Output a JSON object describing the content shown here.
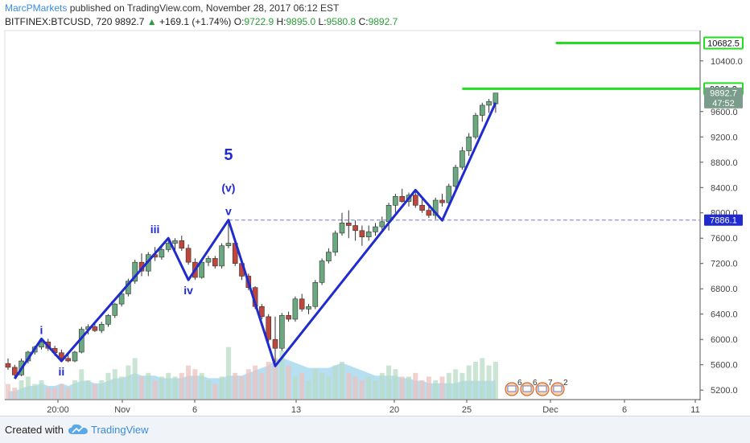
{
  "header": {
    "author": "MarcPMarkets",
    "published_text": "published on TradingView.com, November 28, 2017 06:12 EST",
    "symbol": "BITFINEX:BTCUSD, 720",
    "last": "9892.7",
    "change": "+169.1 (+1.74%)",
    "o_label": "O:",
    "o_value": "9722.9",
    "h_label": "H:",
    "h_value": "9895.0",
    "l_label": "L:",
    "l_value": "9580.8",
    "c_label": "C:",
    "c_value": "9892.7",
    "up_icon": "triangle-up-icon"
  },
  "footer": {
    "created_with": "Created with",
    "brand": "TradingView",
    "logo_icon": "tradingview-cloud-icon"
  },
  "colors": {
    "up_candle": "#6aa880",
    "down_candle": "#c0453a",
    "wave_line": "#1f2bcf",
    "target_line": "#22dd22",
    "dashed_level": "#9a9ae0",
    "volume_area": "#9fd4ee"
  },
  "chart_data": {
    "type": "candlestick",
    "ylim": [
      5050,
      10880
    ],
    "x_ticks": [
      "20:00",
      "Nov",
      "6",
      "13",
      "20",
      "25",
      "Dec",
      "6",
      "11"
    ],
    "y_ticks": [
      "5200.0",
      "5600.0",
      "6000.0",
      "6400.0",
      "6800.0",
      "7200.0",
      "7600.0",
      "8000.0",
      "8400.0",
      "8800.0",
      "9200.0",
      "9600.0",
      "10400.0"
    ],
    "price_labels": [
      {
        "text": "10682.5",
        "value": 10682.5,
        "style": "green"
      },
      {
        "text": "9961.2",
        "value": 9961.2,
        "style": "green"
      },
      {
        "text": "9892.7",
        "value": 9892.7,
        "style": "gray"
      },
      {
        "text": "47:52",
        "value": 9740,
        "style": "gray"
      },
      {
        "text": "7886.1",
        "value": 7886.1,
        "style": "blue"
      }
    ],
    "candles": [
      {
        "o": 5620,
        "h": 5700,
        "l": 5520,
        "c": 5560
      },
      {
        "o": 5560,
        "h": 5600,
        "l": 5380,
        "c": 5440
      },
      {
        "o": 5440,
        "h": 5700,
        "l": 5420,
        "c": 5660
      },
      {
        "o": 5660,
        "h": 5820,
        "l": 5620,
        "c": 5800
      },
      {
        "o": 5800,
        "h": 5900,
        "l": 5760,
        "c": 5880
      },
      {
        "o": 5880,
        "h": 5990,
        "l": 5840,
        "c": 5960
      },
      {
        "o": 5960,
        "h": 6010,
        "l": 5820,
        "c": 5860
      },
      {
        "o": 5860,
        "h": 5900,
        "l": 5740,
        "c": 5790
      },
      {
        "o": 5790,
        "h": 5840,
        "l": 5660,
        "c": 5700
      },
      {
        "o": 5700,
        "h": 5760,
        "l": 5640,
        "c": 5660
      },
      {
        "o": 5660,
        "h": 5820,
        "l": 5640,
        "c": 5800
      },
      {
        "o": 5800,
        "h": 6200,
        "l": 5780,
        "c": 6160
      },
      {
        "o": 6160,
        "h": 6240,
        "l": 6080,
        "c": 6200
      },
      {
        "o": 6200,
        "h": 6260,
        "l": 6120,
        "c": 6140
      },
      {
        "o": 6140,
        "h": 6280,
        "l": 6100,
        "c": 6240
      },
      {
        "o": 6240,
        "h": 6400,
        "l": 6200,
        "c": 6380
      },
      {
        "o": 6380,
        "h": 6580,
        "l": 6340,
        "c": 6560
      },
      {
        "o": 6560,
        "h": 6740,
        "l": 6520,
        "c": 6720
      },
      {
        "o": 6720,
        "h": 6960,
        "l": 6680,
        "c": 6920
      },
      {
        "o": 6920,
        "h": 7260,
        "l": 6880,
        "c": 7220
      },
      {
        "o": 7220,
        "h": 7360,
        "l": 7000,
        "c": 7080
      },
      {
        "o": 7080,
        "h": 7380,
        "l": 7000,
        "c": 7340
      },
      {
        "o": 7340,
        "h": 7460,
        "l": 7240,
        "c": 7300
      },
      {
        "o": 7300,
        "h": 7460,
        "l": 7260,
        "c": 7420
      },
      {
        "o": 7420,
        "h": 7560,
        "l": 7380,
        "c": 7520
      },
      {
        "o": 7520,
        "h": 7600,
        "l": 7400,
        "c": 7560
      },
      {
        "o": 7560,
        "h": 7640,
        "l": 7400,
        "c": 7440
      },
      {
        "o": 7440,
        "h": 7500,
        "l": 7180,
        "c": 7220
      },
      {
        "o": 7220,
        "h": 7280,
        "l": 6940,
        "c": 6980
      },
      {
        "o": 6980,
        "h": 7260,
        "l": 6960,
        "c": 7220
      },
      {
        "o": 7220,
        "h": 7320,
        "l": 7160,
        "c": 7280
      },
      {
        "o": 7280,
        "h": 7320,
        "l": 7120,
        "c": 7160
      },
      {
        "o": 7160,
        "h": 7520,
        "l": 7120,
        "c": 7480
      },
      {
        "o": 7480,
        "h": 7860,
        "l": 7440,
        "c": 7520
      },
      {
        "o": 7520,
        "h": 7560,
        "l": 7160,
        "c": 7200
      },
      {
        "o": 7200,
        "h": 7260,
        "l": 6940,
        "c": 7000
      },
      {
        "o": 7000,
        "h": 7040,
        "l": 6780,
        "c": 6820
      },
      {
        "o": 6820,
        "h": 6840,
        "l": 6480,
        "c": 6520
      },
      {
        "o": 6520,
        "h": 6560,
        "l": 6320,
        "c": 6360
      },
      {
        "o": 6360,
        "h": 6400,
        "l": 5960,
        "c": 6000
      },
      {
        "o": 6000,
        "h": 6360,
        "l": 5580,
        "c": 5860
      },
      {
        "o": 5860,
        "h": 6420,
        "l": 5820,
        "c": 6380
      },
      {
        "o": 6380,
        "h": 6440,
        "l": 6280,
        "c": 6320
      },
      {
        "o": 6320,
        "h": 6680,
        "l": 6280,
        "c": 6640
      },
      {
        "o": 6640,
        "h": 6720,
        "l": 6440,
        "c": 6480
      },
      {
        "o": 6480,
        "h": 6560,
        "l": 6400,
        "c": 6520
      },
      {
        "o": 6520,
        "h": 6940,
        "l": 6480,
        "c": 6900
      },
      {
        "o": 6900,
        "h": 7280,
        "l": 6860,
        "c": 7240
      },
      {
        "o": 7240,
        "h": 7440,
        "l": 7200,
        "c": 7380
      },
      {
        "o": 7380,
        "h": 7720,
        "l": 7320,
        "c": 7680
      },
      {
        "o": 7680,
        "h": 8000,
        "l": 7640,
        "c": 7840
      },
      {
        "o": 7840,
        "h": 8040,
        "l": 7600,
        "c": 7800
      },
      {
        "o": 7800,
        "h": 7880,
        "l": 7560,
        "c": 7720
      },
      {
        "o": 7720,
        "h": 7800,
        "l": 7480,
        "c": 7620
      },
      {
        "o": 7620,
        "h": 7800,
        "l": 7560,
        "c": 7700
      },
      {
        "o": 7700,
        "h": 7840,
        "l": 7640,
        "c": 7780
      },
      {
        "o": 7780,
        "h": 7940,
        "l": 7700,
        "c": 7860
      },
      {
        "o": 7860,
        "h": 8160,
        "l": 7720,
        "c": 8120
      },
      {
        "o": 8120,
        "h": 8300,
        "l": 8000,
        "c": 8260
      },
      {
        "o": 8260,
        "h": 8380,
        "l": 8160,
        "c": 8180
      },
      {
        "o": 8180,
        "h": 8320,
        "l": 8100,
        "c": 8280
      },
      {
        "o": 8280,
        "h": 8340,
        "l": 8080,
        "c": 8120
      },
      {
        "o": 8120,
        "h": 8240,
        "l": 8000,
        "c": 8040
      },
      {
        "o": 8040,
        "h": 8120,
        "l": 7920,
        "c": 7960
      },
      {
        "o": 7960,
        "h": 8240,
        "l": 7900,
        "c": 8200
      },
      {
        "o": 8200,
        "h": 8300,
        "l": 8100,
        "c": 8160
      },
      {
        "o": 8160,
        "h": 8460,
        "l": 8120,
        "c": 8420
      },
      {
        "o": 8420,
        "h": 8760,
        "l": 8380,
        "c": 8720
      },
      {
        "o": 8720,
        "h": 9040,
        "l": 8680,
        "c": 8980
      },
      {
        "o": 8980,
        "h": 9260,
        "l": 8900,
        "c": 9200
      },
      {
        "o": 9200,
        "h": 9580,
        "l": 9160,
        "c": 9540
      },
      {
        "o": 9540,
        "h": 9740,
        "l": 9440,
        "c": 9700
      },
      {
        "o": 9700,
        "h": 9800,
        "l": 9580,
        "c": 9760
      },
      {
        "o": 9722.9,
        "h": 9895.0,
        "l": 9580.8,
        "c": 9892.7
      }
    ],
    "volume_bars": [
      4,
      3,
      5,
      6,
      4,
      5,
      3,
      3,
      4,
      3,
      5,
      8,
      5,
      4,
      5,
      7,
      8,
      6,
      9,
      11,
      6,
      7,
      5,
      6,
      7,
      6,
      7,
      9,
      8,
      7,
      5,
      4,
      6,
      14,
      7,
      6,
      8,
      9,
      7,
      10,
      11,
      13,
      9,
      6,
      7,
      5,
      8,
      7,
      6,
      9,
      10,
      7,
      6,
      5,
      6,
      5,
      7,
      9,
      8,
      6,
      6,
      7,
      5,
      6,
      5,
      6,
      7,
      8,
      7,
      9,
      10,
      11,
      9,
      10
    ],
    "volume_area": [
      3,
      3,
      4,
      5,
      5,
      6,
      5,
      5,
      6,
      5,
      6,
      7,
      7,
      6,
      6,
      7,
      8,
      8,
      9,
      10,
      9,
      9,
      9,
      8,
      8,
      8,
      8,
      9,
      9,
      9,
      8,
      8,
      8,
      9,
      9,
      9,
      10,
      11,
      12,
      13,
      15,
      16,
      15,
      14,
      13,
      12,
      12,
      12,
      12,
      13,
      14,
      13,
      12,
      11,
      10,
      9,
      9,
      9,
      9,
      8,
      8,
      7,
      7,
      6,
      6,
      6,
      6,
      6,
      7,
      7,
      7,
      7,
      7,
      7
    ],
    "wave_points": [
      {
        "i": 1,
        "price": 5380
      },
      {
        "i": 5,
        "price": 6010
      },
      {
        "i": 8,
        "price": 5660
      },
      {
        "i": 24,
        "price": 7600
      },
      {
        "i": 27,
        "price": 6940
      },
      {
        "i": 33,
        "price": 7886.1
      },
      {
        "i": 40,
        "price": 5580
      },
      {
        "i": 57,
        "price": 7840
      },
      {
        "i": 61,
        "price": 8360
      },
      {
        "i": 65,
        "price": 7880
      },
      {
        "i": 73,
        "price": 9740
      }
    ],
    "wave_labels": [
      {
        "text": "i",
        "i": 5,
        "price": 6010,
        "pos": "above",
        "bold": false
      },
      {
        "text": "ii",
        "i": 8,
        "price": 5660,
        "pos": "below",
        "bold": false
      },
      {
        "text": "iii",
        "i": 22,
        "price": 7600,
        "pos": "above",
        "bold": false
      },
      {
        "text": "iv",
        "i": 27,
        "price": 6940,
        "pos": "below",
        "bold": false
      },
      {
        "text": "v",
        "i": 33,
        "price": 7886.1,
        "pos": "above",
        "bold": false
      },
      {
        "text": "(v)",
        "i": 33,
        "price": 8260,
        "pos": "above",
        "bold": false
      },
      {
        "text": "5",
        "i": 33,
        "price": 8760,
        "pos": "above",
        "bold": true
      }
    ],
    "horizontal_levels": [
      {
        "price": 10682.5,
        "style": "solid",
        "start_i": 82
      },
      {
        "price": 9961.2,
        "style": "solid",
        "start_i": 68
      },
      {
        "price": 7886.1,
        "style": "dashed",
        "start_i": 33
      }
    ],
    "event_badges": [
      "6",
      "6",
      "7",
      "2"
    ]
  }
}
